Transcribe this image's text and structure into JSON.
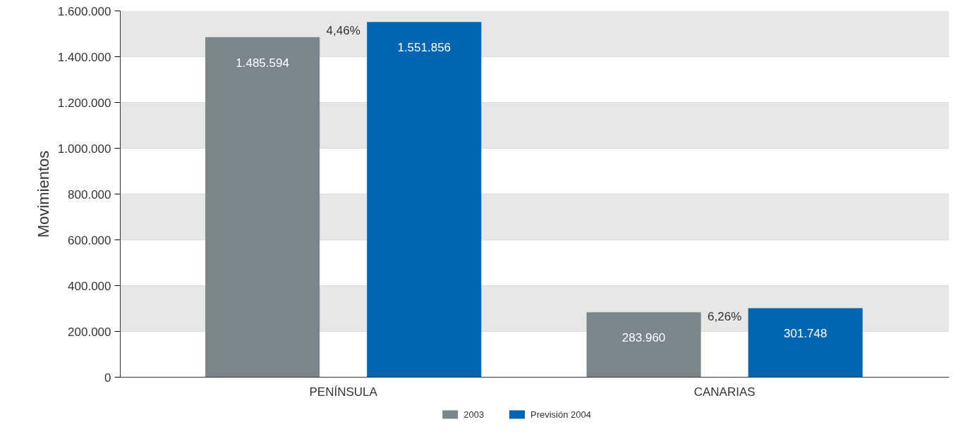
{
  "chart_data": {
    "type": "bar",
    "ylabel": "Movimientos",
    "categories": [
      "PENÍNSULA",
      "CANARIAS"
    ],
    "series": [
      {
        "name": "2003",
        "color": "#7a858c",
        "values": [
          1485594,
          283960
        ],
        "value_labels": [
          "1.485.594",
          "283.960"
        ]
      },
      {
        "name": "Previsión 2004",
        "color": "#0066b3",
        "values": [
          1551856,
          301748
        ],
        "value_labels": [
          "1.551.856",
          "301.748"
        ]
      }
    ],
    "ylim": [
      0,
      1600000
    ],
    "yticks": [
      0,
      {
        "value": 200000,
        "label": "200.000"
      },
      {
        "value": 400000,
        "label": "400.000"
      },
      {
        "value": 600000,
        "label": "600.000"
      },
      {
        "value": 800000,
        "label": "800.000"
      },
      {
        "value": 1000000,
        "label": "1.000.000"
      },
      {
        "value": 1200000,
        "label": "1.200.000"
      },
      {
        "value": 1400000,
        "label": "1.400.000"
      },
      {
        "value": 1600000,
        "label": "1.600.000"
      }
    ],
    "annotations": [
      "4,46%",
      "6,26%"
    ],
    "grid": "y",
    "legend": "bottom"
  }
}
